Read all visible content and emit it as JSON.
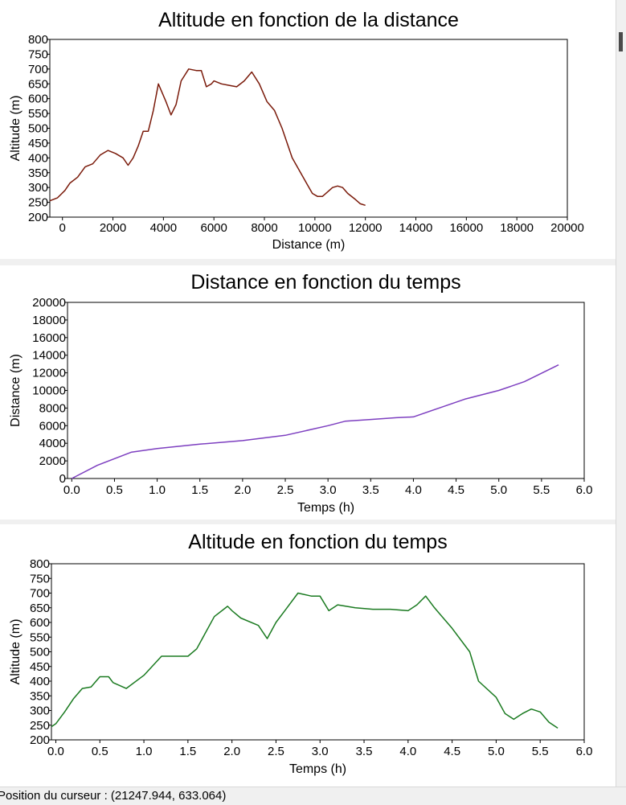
{
  "chart_data": [
    {
      "type": "line",
      "title": "Altitude en fonction de la distance",
      "xlabel": "Distance (m)",
      "ylabel": "Altitude (m)",
      "xlim": [
        -500,
        20000
      ],
      "ylim": [
        200,
        800
      ],
      "x_ticks": [
        0,
        2000,
        4000,
        6000,
        8000,
        10000,
        12000,
        14000,
        16000,
        18000,
        20000
      ],
      "y_ticks": [
        200,
        250,
        300,
        350,
        400,
        450,
        500,
        550,
        600,
        650,
        700,
        750,
        800
      ],
      "grid": false,
      "color": "#7a1a0a",
      "series": [
        {
          "x": [
            -500,
            -200,
            100,
            300,
            600,
            900,
            1200,
            1500,
            1800,
            2100,
            2400,
            2600,
            2800,
            3000,
            3200,
            3400,
            3600,
            3800,
            4100,
            4300,
            4500,
            4700,
            5000,
            5300,
            5500,
            5700,
            5900,
            6000,
            6300,
            6600,
            6900,
            7200,
            7500,
            7800,
            8100,
            8400,
            8700,
            8900,
            9100,
            9400,
            9700,
            9900,
            10100,
            10300,
            10500,
            10700,
            10900,
            11100,
            11300,
            11600,
            11800,
            12000
          ],
          "y": [
            255,
            265,
            290,
            315,
            335,
            370,
            380,
            410,
            425,
            415,
            400,
            375,
            400,
            440,
            490,
            490,
            560,
            650,
            590,
            545,
            580,
            660,
            700,
            695,
            695,
            640,
            650,
            660,
            650,
            645,
            640,
            660,
            690,
            650,
            590,
            560,
            500,
            450,
            400,
            355,
            310,
            280,
            270,
            270,
            285,
            300,
            305,
            300,
            280,
            260,
            245,
            240
          ]
        }
      ]
    },
    {
      "type": "line",
      "title": "Distance en fonction du temps",
      "xlabel": "Temps (h)",
      "ylabel": "Distance (m)",
      "xlim": [
        -0.05,
        6.0
      ],
      "ylim": [
        0,
        20000
      ],
      "x_ticks": [
        "0.0",
        "0.5",
        "1.0",
        "1.5",
        "2.0",
        "2.5",
        "3.0",
        "3.5",
        "4.0",
        "4.5",
        "5.0",
        "5.5",
        "6.0"
      ],
      "y_ticks": [
        0,
        2000,
        4000,
        6000,
        8000,
        10000,
        12000,
        14000,
        16000,
        18000,
        20000
      ],
      "grid": false,
      "color": "#7d3fc0",
      "series": [
        {
          "x": [
            0.0,
            0.3,
            0.7,
            1.0,
            1.5,
            2.0,
            2.5,
            3.0,
            3.2,
            3.5,
            3.8,
            4.0,
            4.3,
            4.6,
            5.0,
            5.3,
            5.7
          ],
          "y": [
            0,
            1500,
            3000,
            3400,
            3900,
            4300,
            4900,
            6000,
            6500,
            6700,
            6900,
            7000,
            8000,
            9000,
            10000,
            11000,
            12900
          ]
        }
      ]
    },
    {
      "type": "line",
      "title": "Altitude en fonction du temps",
      "xlabel": "Temps (h)",
      "ylabel": "Altitude (m)",
      "xlim": [
        -0.05,
        6.0
      ],
      "ylim": [
        200,
        800
      ],
      "x_ticks": [
        "0.0",
        "0.5",
        "1.0",
        "1.5",
        "2.0",
        "2.5",
        "3.0",
        "3.5",
        "4.0",
        "4.5",
        "5.0",
        "5.5",
        "6.0"
      ],
      "y_ticks": [
        200,
        250,
        300,
        350,
        400,
        450,
        500,
        550,
        600,
        650,
        700,
        750,
        800
      ],
      "grid": false,
      "color": "#1a7a20",
      "series": [
        {
          "x": [
            -0.05,
            0.0,
            0.1,
            0.2,
            0.3,
            0.4,
            0.5,
            0.6,
            0.65,
            0.8,
            1.0,
            1.2,
            1.5,
            1.6,
            1.8,
            1.95,
            2.0,
            2.1,
            2.3,
            2.4,
            2.5,
            2.6,
            2.75,
            2.9,
            3.0,
            3.1,
            3.2,
            3.4,
            3.6,
            3.8,
            4.0,
            4.1,
            4.2,
            4.3,
            4.5,
            4.7,
            4.8,
            5.0,
            5.1,
            5.2,
            5.3,
            5.4,
            5.5,
            5.6,
            5.7
          ],
          "y": [
            245,
            255,
            295,
            340,
            375,
            380,
            415,
            415,
            395,
            375,
            420,
            485,
            485,
            510,
            620,
            655,
            640,
            615,
            590,
            545,
            600,
            640,
            700,
            690,
            690,
            640,
            660,
            650,
            645,
            645,
            640,
            660,
            690,
            650,
            580,
            500,
            400,
            345,
            290,
            270,
            290,
            305,
            295,
            260,
            240
          ]
        }
      ]
    }
  ],
  "status_bar": {
    "cursor_text": "Position du curseur : (21247.944, 633.064)"
  }
}
